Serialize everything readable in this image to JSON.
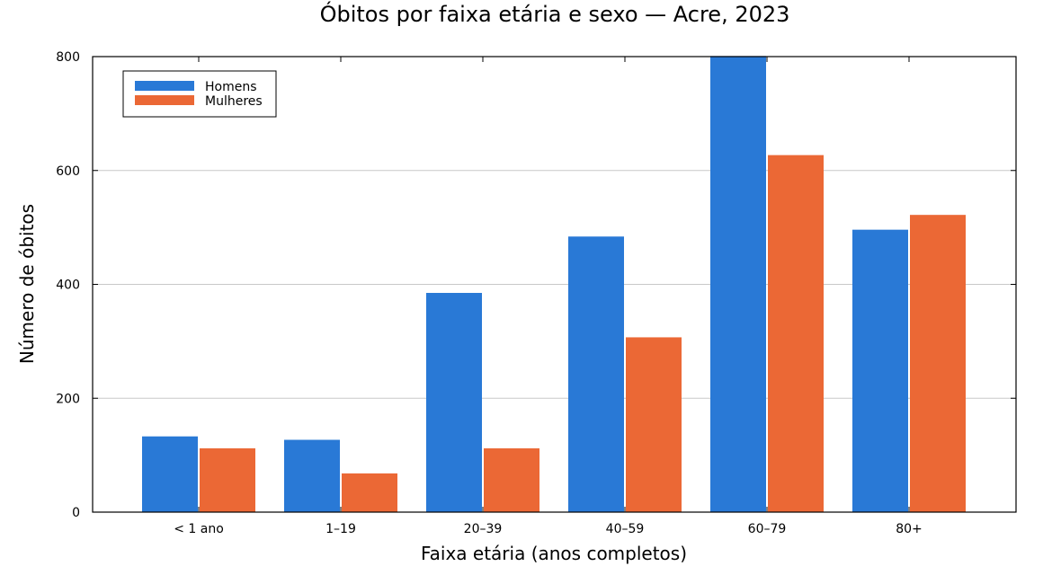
{
  "chart_data": {
    "type": "bar",
    "title": "Óbitos por faixa etária e sexo — Acre, 2023",
    "xlabel": "Faixa etária (anos completos)",
    "ylabel": "Número de óbitos",
    "categories": [
      "< 1 ano",
      "1–19",
      "20–39",
      "40–59",
      "60–79",
      "80+"
    ],
    "series": [
      {
        "name": "Homens",
        "color": "#2979d6",
        "values": [
          133,
          127,
          385,
          484,
          801,
          496
        ]
      },
      {
        "name": "Mulheres",
        "color": "#eb6835",
        "values": [
          112,
          68,
          112,
          307,
          627,
          522
        ]
      }
    ],
    "ylim": [
      0,
      800
    ],
    "yticks": [
      0,
      200,
      400,
      600,
      800
    ],
    "grid": "horizontal",
    "legend_position": "top-left"
  }
}
